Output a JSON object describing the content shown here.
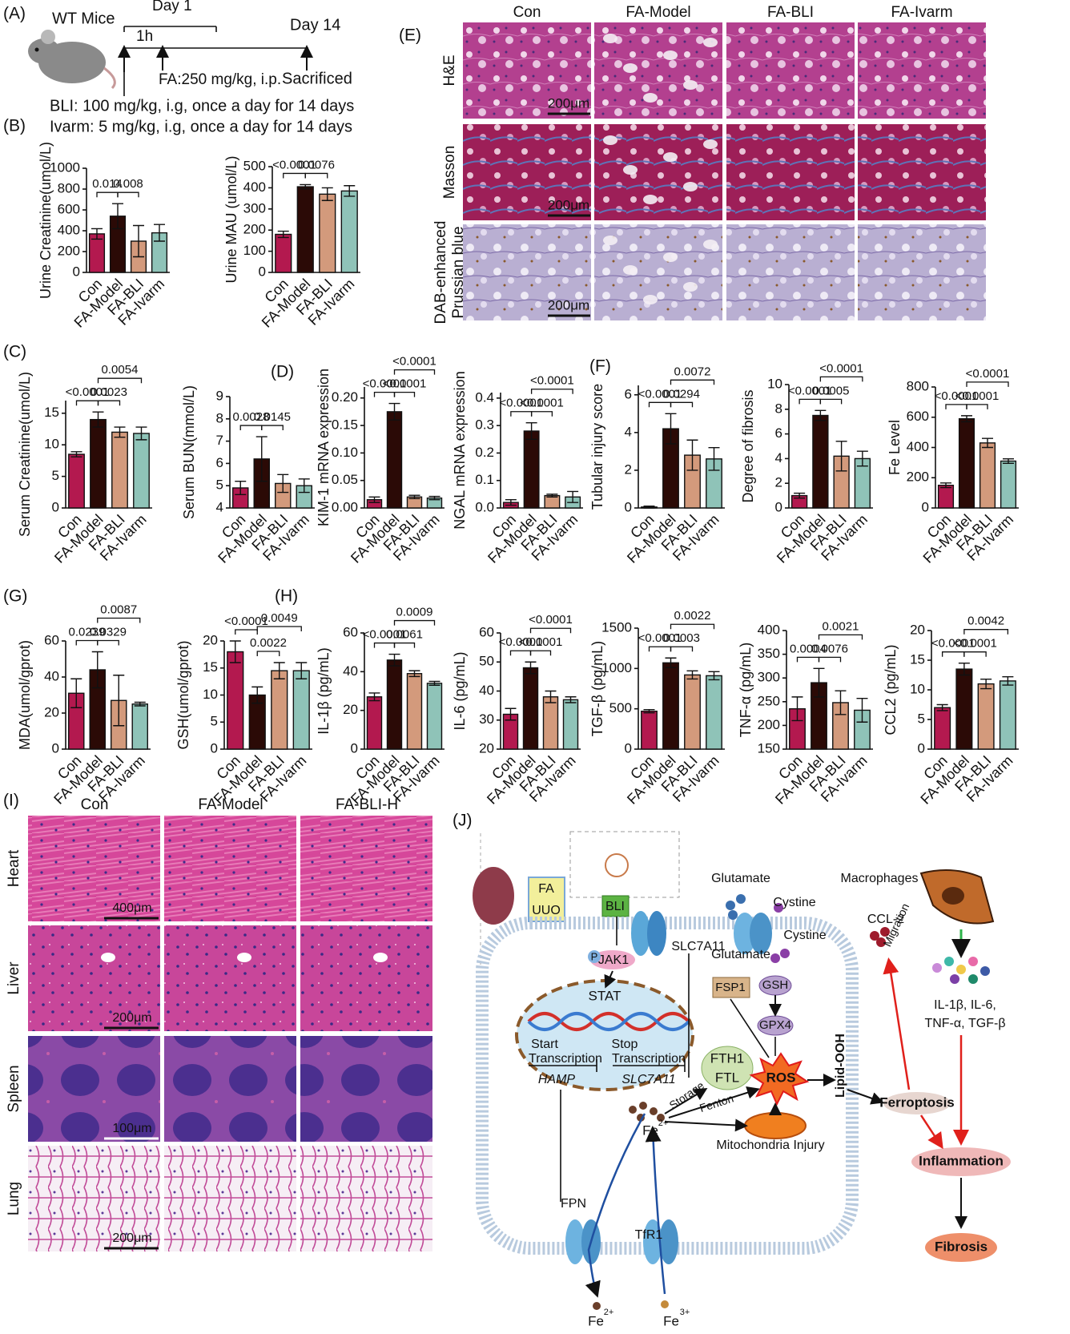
{
  "panel_labels": [
    "(A)",
    "(B)",
    "(C)",
    "(D)",
    "(E)",
    "(F)",
    "(G)",
    "(H)",
    "(I)",
    "(J)"
  ],
  "panel_a": {
    "texts": [
      "WT Mice",
      "Day 1",
      "1h",
      "Day 14",
      "FA:250 mg/kg, i.p.",
      "Sacrificed",
      "BLI: 100 mg/kg, i.g, once a day for 14 days",
      "Ivarm: 5 mg/kg, i.g, once a day for 14 days"
    ]
  },
  "chart_data": [
    {
      "type": "bar",
      "ylabel": "Urine Creatinine(umol/L)",
      "categories": [
        "Con",
        "FA-Model",
        "FA-BLI",
        "FA-Ivarm"
      ],
      "values": [
        370,
        540,
        300,
        380
      ],
      "errors": [
        50,
        120,
        150,
        80
      ],
      "colors": [
        "#b3194f",
        "#2b0a06",
        "#d39a7c",
        "#8fc3b8"
      ],
      "ylim": [
        0,
        1000
      ],
      "yticks": [
        0,
        200,
        400,
        600,
        800,
        1000
      ],
      "annotations": [
        "0.014",
        "0.008"
      ]
    },
    {
      "type": "bar",
      "ylabel": "Urine MAU (umol/L)",
      "categories": [
        "Con",
        "FA-Model",
        "FA-BLI",
        "FA-Ivarm"
      ],
      "values": [
        180,
        405,
        370,
        385
      ],
      "errors": [
        15,
        10,
        30,
        25
      ],
      "colors": [
        "#b3194f",
        "#2b0a06",
        "#d39a7c",
        "#8fc3b8"
      ],
      "ylim": [
        0,
        500
      ],
      "yticks": [
        0,
        100,
        200,
        300,
        400,
        500
      ],
      "annotations": [
        "<0.0001",
        "0.0076"
      ]
    },
    {
      "type": "bar",
      "ylabel": "Serum Creatinine(umol/L)",
      "categories": [
        "Con",
        "FA-Model",
        "FA-BLI",
        "FA-Ivarm"
      ],
      "values": [
        8.5,
        14,
        12,
        11.8
      ],
      "errors": [
        0.4,
        1.2,
        0.8,
        1
      ],
      "colors": [
        "#b3194f",
        "#2b0a06",
        "#d39a7c",
        "#8fc3b8"
      ],
      "ylim": [
        0,
        17
      ],
      "yticks": [
        0,
        5,
        10,
        15
      ],
      "annotations": [
        "<0.0001",
        "0.0023",
        "0.0054"
      ]
    },
    {
      "type": "bar",
      "ylabel": "Serum BUN(mmol/L)",
      "categories": [
        "Con",
        "FA-Model",
        "FA-BLI",
        "FA-Ivarm"
      ],
      "values": [
        4.9,
        6.2,
        5.1,
        5.0
      ],
      "errors": [
        0.3,
        1.0,
        0.4,
        0.3
      ],
      "colors": [
        "#b3194f",
        "#2b0a06",
        "#d39a7c",
        "#8fc3b8"
      ],
      "ylim": [
        4,
        9
      ],
      "yticks": [
        4,
        5,
        6,
        7,
        8,
        9
      ],
      "annotations": [
        "0.0028",
        "0.0145"
      ]
    },
    {
      "type": "bar",
      "ylabel": "KIM-1 mRNA expression",
      "categories": [
        "Con",
        "FA-Model",
        "FA-BLI",
        "FA-Ivarm"
      ],
      "values": [
        0.015,
        0.175,
        0.02,
        0.018
      ],
      "errors": [
        0.005,
        0.015,
        0.003,
        0.003
      ],
      "colors": [
        "#b3194f",
        "#2b0a06",
        "#d39a7c",
        "#8fc3b8"
      ],
      "ylim": [
        0,
        0.22
      ],
      "yticks": [
        {
          "value": 0,
          "label": "0.00"
        },
        0.05,
        {
          "value": 0.1,
          "label": "0.10"
        },
        0.15,
        {
          "value": 0.2,
          "label": "0.20"
        }
      ],
      "annotations": [
        "<0.0001",
        "<0.0001",
        "<0.0001"
      ]
    },
    {
      "type": "bar",
      "ylabel": "NGAL mRNA expression",
      "categories": [
        "Con",
        "FA-Model",
        "FA-BLI",
        "FA-Ivarm"
      ],
      "values": [
        0.02,
        0.28,
        0.045,
        0.04
      ],
      "errors": [
        0.01,
        0.03,
        0.005,
        0.02
      ],
      "colors": [
        "#b3194f",
        "#2b0a06",
        "#d39a7c",
        "#8fc3b8"
      ],
      "ylim": [
        0,
        0.42
      ],
      "yticks": [
        {
          "value": 0,
          "label": "0.0"
        },
        0.1,
        0.2,
        0.3,
        0.4
      ],
      "annotations": [
        "<0.0001",
        "<0.0001",
        "<0.0001"
      ]
    },
    {
      "type": "bar",
      "ylabel": "Tubular injury score",
      "categories": [
        "Con",
        "FA-Model",
        "FA-BLI",
        "FA-Ivarm"
      ],
      "values": [
        0.05,
        4.2,
        2.8,
        2.6
      ],
      "errors": [
        0.05,
        0.8,
        0.8,
        0.6
      ],
      "colors": [
        "#b3194f",
        "#2b0a06",
        "#d39a7c",
        "#8fc3b8"
      ],
      "ylim": [
        0,
        6.5
      ],
      "yticks": [
        0,
        2,
        4,
        6
      ],
      "annotations": [
        "<0.0001",
        "0.0294",
        "0.0072"
      ]
    },
    {
      "type": "bar",
      "ylabel": "Degree of fibrosis",
      "categories": [
        "Con",
        "FA-Model",
        "FA-BLI",
        "FA-Ivarm"
      ],
      "values": [
        1,
        7.5,
        4.2,
        4
      ],
      "errors": [
        0.2,
        0.4,
        1.2,
        0.6
      ],
      "colors": [
        "#b3194f",
        "#2b0a06",
        "#d39a7c",
        "#8fc3b8"
      ],
      "ylim": [
        0,
        10
      ],
      "yticks": [
        0,
        2,
        4,
        6,
        8,
        10
      ],
      "annotations": [
        "<0.0001",
        "0.0005",
        "<0.0001"
      ]
    },
    {
      "type": "bar",
      "ylabel": "Fe Level",
      "categories": [
        "Con",
        "FA-Model",
        "FA-BLI",
        "FA-Ivarm"
      ],
      "values": [
        150,
        590,
        430,
        310
      ],
      "errors": [
        15,
        20,
        30,
        15
      ],
      "colors": [
        "#b3194f",
        "#2b0a06",
        "#d39a7c",
        "#8fc3b8"
      ],
      "ylim": [
        0,
        800
      ],
      "yticks": [
        0,
        200,
        400,
        600,
        800
      ],
      "annotations": [
        "<0.0001",
        "<0.0001",
        "<0.0001"
      ]
    },
    {
      "type": "bar",
      "ylabel": "MDA(umol/gprot)",
      "categories": [
        "Con",
        "FA-Model",
        "FA-BLI",
        "FA-Ivarm"
      ],
      "values": [
        31,
        44,
        27,
        25
      ],
      "errors": [
        8,
        10,
        14,
        1
      ],
      "colors": [
        "#b3194f",
        "#2b0a06",
        "#d39a7c",
        "#8fc3b8"
      ],
      "ylim": [
        0,
        60
      ],
      "yticks": [
        0,
        20,
        40,
        60
      ],
      "annotations": [
        "0.0239",
        "0.0329",
        "0.0087"
      ]
    },
    {
      "type": "bar",
      "ylabel": "GSH(umol/gprot)",
      "categories": [
        "Con",
        "FA-Model",
        "FA-BLI",
        "FA-Ivarm"
      ],
      "values": [
        18,
        10,
        14.5,
        14.5
      ],
      "errors": [
        2,
        1.5,
        1.5,
        1.5
      ],
      "colors": [
        "#b3194f",
        "#2b0a06",
        "#d39a7c",
        "#8fc3b8"
      ],
      "ylim": [
        0,
        20
      ],
      "yticks": [
        0,
        5,
        10,
        15,
        20
      ],
      "annotations": [
        "<0.0001",
        "0.0022",
        "0.0049"
      ]
    },
    {
      "type": "bar",
      "ylabel": "IL-1β (pg/mL)",
      "categories": [
        "Con",
        "FA-Model",
        "FA-BLI",
        "FA-Ivarm"
      ],
      "values": [
        27,
        46,
        39,
        34
      ],
      "errors": [
        2,
        3,
        1.5,
        1
      ],
      "colors": [
        "#b3194f",
        "#2b0a06",
        "#d39a7c",
        "#8fc3b8"
      ],
      "ylim": [
        0,
        60
      ],
      "yticks": [
        0,
        20,
        40,
        60
      ],
      "annotations": [
        "<0.0001",
        "0.0061",
        "0.0009"
      ]
    },
    {
      "type": "bar",
      "ylabel": "IL-6 (pg/mL)",
      "categories": [
        "Con",
        "FA-Model",
        "FA-BLI",
        "FA-Ivarm"
      ],
      "values": [
        32,
        48,
        38,
        37
      ],
      "errors": [
        2,
        2,
        2,
        1
      ],
      "colors": [
        "#b3194f",
        "#2b0a06",
        "#d39a7c",
        "#8fc3b8"
      ],
      "ylim": [
        20,
        60
      ],
      "yticks": [
        20,
        30,
        40,
        50,
        60
      ],
      "annotations": [
        "<0.0001",
        "<0.0001",
        "<0.0001"
      ]
    },
    {
      "type": "bar",
      "ylabel": "TGF-β (pg/mL)",
      "categories": [
        "Con",
        "FA-Model",
        "FA-BLI",
        "FA-Ivarm"
      ],
      "values": [
        470,
        1070,
        920,
        910
      ],
      "errors": [
        20,
        60,
        50,
        50
      ],
      "colors": [
        "#b3194f",
        "#2b0a06",
        "#d39a7c",
        "#8fc3b8"
      ],
      "ylim": [
        0,
        1500
      ],
      "yticks": [
        0,
        500,
        1000,
        1500
      ],
      "annotations": [
        "<0.0001",
        "0.0003",
        "0.0022"
      ]
    },
    {
      "type": "bar",
      "ylabel": "TNF-α (pg/mL)",
      "categories": [
        "Con",
        "FA-Model",
        "FA-BLI",
        "FA-Ivarm"
      ],
      "values": [
        235,
        290,
        248,
        232
      ],
      "errors": [
        25,
        30,
        25,
        25
      ],
      "colors": [
        "#b3194f",
        "#2b0a06",
        "#d39a7c",
        "#8fc3b8"
      ],
      "ylim": [
        150,
        400
      ],
      "yticks": [
        150,
        200,
        250,
        300,
        350,
        400
      ],
      "annotations": [
        "0.0004",
        "0.0076",
        "0.0021"
      ]
    },
    {
      "type": "bar",
      "ylabel": "CCL2 (pg/mL)",
      "categories": [
        "Con",
        "FA-Model",
        "FA-BLI",
        "FA-Ivarm"
      ],
      "values": [
        7,
        13.5,
        11,
        11.5
      ],
      "errors": [
        0.5,
        1,
        0.8,
        0.7
      ],
      "colors": [
        "#b3194f",
        "#2b0a06",
        "#d39a7c",
        "#8fc3b8"
      ],
      "ylim": [
        0,
        20
      ],
      "yticks": [
        0,
        5,
        10,
        15,
        20
      ],
      "annotations": [
        "<0.0001",
        "<0.0001",
        "0.0042"
      ]
    }
  ],
  "panel_e": {
    "columns": [
      "Con",
      "FA-Model",
      "FA-BLI",
      "FA-Ivarm"
    ],
    "rows": [
      [
        "H&E"
      ],
      [
        "Masson"
      ],
      [
        "DAB-enhanced",
        "Prussian blue"
      ]
    ],
    "scale_bars": [
      "200μm",
      "200μm",
      "200μm"
    ]
  },
  "panel_i": {
    "columns": [
      "Con",
      "FA-Model",
      "FA-BLI-H"
    ],
    "rows": [
      "Heart",
      "Liver",
      "Spleen",
      "Lung"
    ],
    "scale_bars": [
      "400μm",
      "200μm",
      "100μm",
      "200μm"
    ]
  },
  "panel_j": {
    "labels": [
      "FA",
      "UUO",
      "BLI",
      "P",
      "JAK1",
      "STAT",
      "Start",
      "Transcription",
      "Stop",
      "Transcription",
      "HAMP",
      "SLC7A11",
      "Glutamate",
      "Cystine",
      "SLC7A11",
      "Glutamate",
      "Cystine",
      "FSP1",
      "GSH",
      "GPX4",
      "FTH1",
      "FTL",
      "ROS",
      "Storage",
      "Fenton",
      "Fe",
      "2+",
      "Mitochondria Injury",
      "Lipid-OOH",
      "Ferroptosis",
      "Macrophages",
      "Migration",
      "CCL-2",
      "IL-1β, IL-6,",
      "TNF-α, TGF-β",
      "Inflammation",
      "Fibrosis",
      "FPN",
      "TfR1",
      "Fe",
      "2+",
      "Fe",
      "3+"
    ]
  }
}
